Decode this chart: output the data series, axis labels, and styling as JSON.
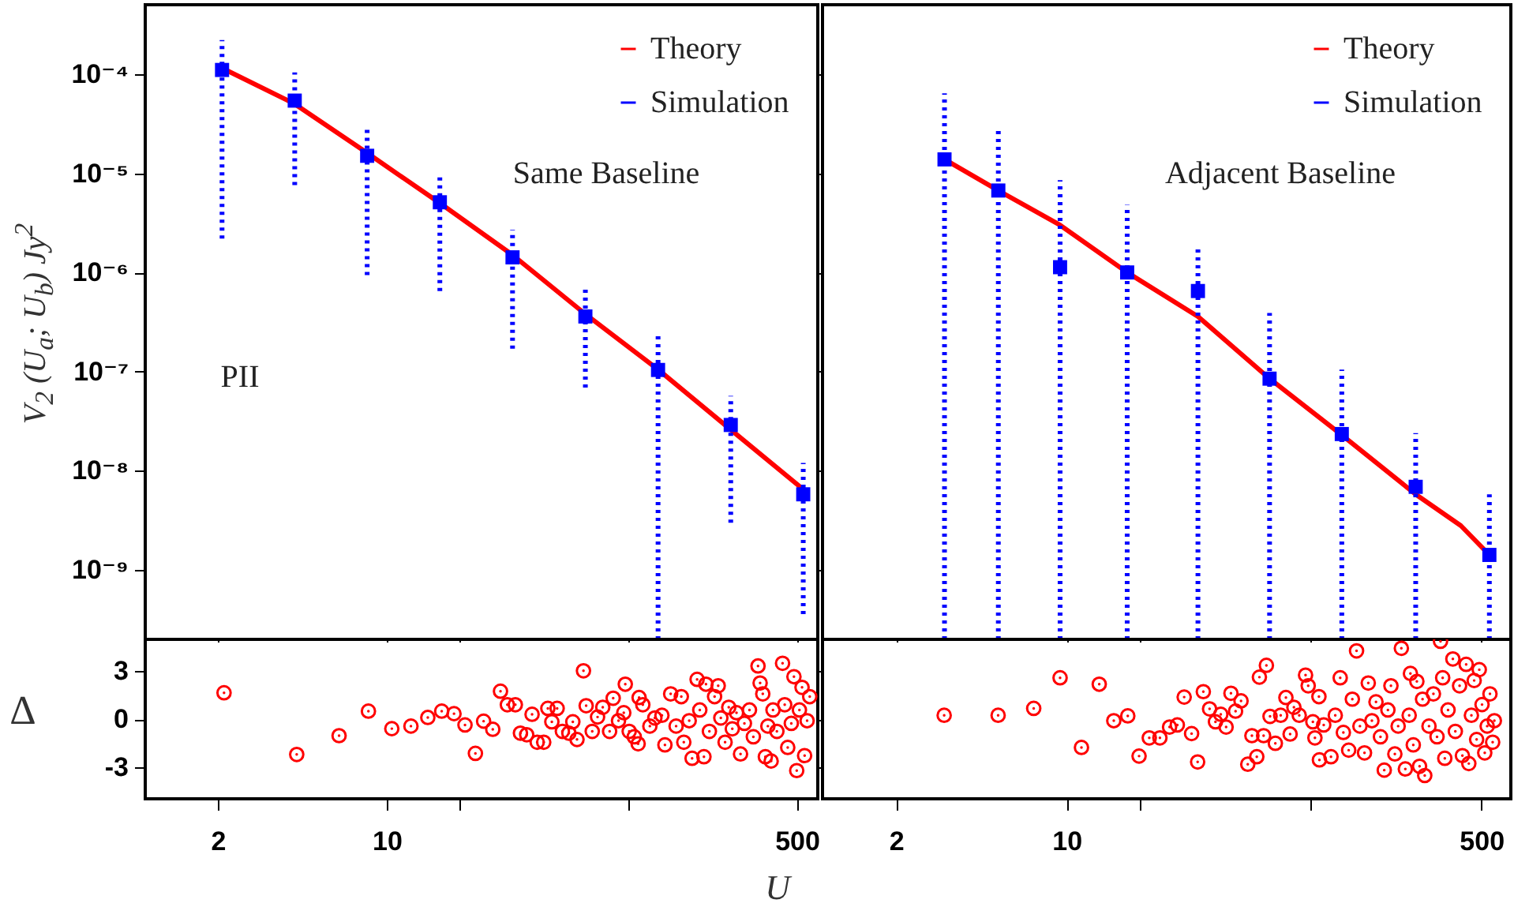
{
  "chart_data": [
    {
      "type": "line",
      "ylabel": "V$_{2}$ (U$_{a}$; U$_{b}$) Jy$^{2}$",
      "annotations": [
        "Same Baseline",
        "PII"
      ],
      "log": "xy",
      "legend": "top right",
      "tick_labels": "y",
      "xlim": [
        1,
        610
      ],
      "xticks": [
        {
          "value": 2,
          "label": null
        },
        {
          "value": 10,
          "label": null
        },
        {
          "value": 20,
          "label": null
        },
        {
          "value": 100,
          "label": null
        },
        {
          "value": 500,
          "label": null
        }
      ],
      "ylim": [
        2e-10,
        0.0005
      ],
      "yticks": [
        {
          "value": 1e-09,
          "label": "10⁻⁹"
        },
        {
          "value": 1e-08,
          "label": "10⁻⁸"
        },
        {
          "value": 1e-07,
          "label": "10⁻⁷"
        },
        {
          "value": 1e-06,
          "label": "10⁻⁶"
        },
        {
          "value": 1e-05,
          "label": "10⁻⁵"
        },
        {
          "value": 0.0001,
          "label": "10⁻⁴"
        }
      ],
      "x": [
        2.08,
        4.16,
        8.3,
        16.6,
        33.2,
        66.5,
        133,
        266,
        531
      ],
      "series": [
        {
          "name": "Theory",
          "type": "line",
          "marker": "none",
          "color": "#ff0000",
          "values": [
            0.000115,
            5e-05,
            1.6e-05,
            5e-06,
            1.5e-06,
            3.8e-07,
            1.05e-07,
            2.6e-08,
            6.5e-09
          ]
        },
        {
          "name": "Simulation",
          "type": "scatter",
          "marker": "square",
          "color": "#0000ff",
          "values": [
            0.00011,
            5.4e-05,
            1.5e-05,
            5.1e-06,
            1.42e-06,
            3.6e-07,
            1.04e-07,
            2.9e-08,
            5.8e-09
          ],
          "errors": [
            [
              2.2e-06,
              0.00022
            ],
            [
              7.6e-06,
              0.000104
            ],
            [
              9.4e-07,
              3e-05
            ],
            [
              6.5e-07,
              9.7e-06
            ],
            [
              1.7e-07,
              2.7e-06
            ],
            [
              6.9e-08,
              6.8e-07
            ],
            [
              2e-10,
              2.3e-07
            ],
            [
              3e-09,
              5.7e-08
            ],
            [
              3.6e-10,
              1.2e-08
            ]
          ]
        }
      ]
    },
    {
      "type": "line",
      "annotations": [
        "Adjacent Baseline"
      ],
      "log": "xy",
      "legend": "top right",
      "tick_labels": false,
      "xlim": [
        1,
        660
      ],
      "xticks": [
        {
          "value": 2,
          "label": null
        },
        {
          "value": 10,
          "label": null
        },
        {
          "value": 20,
          "label": null
        },
        {
          "value": 100,
          "label": null
        },
        {
          "value": 500,
          "label": null
        }
      ],
      "ylim": [
        2e-10,
        0.0005
      ],
      "yticks": [
        {
          "value": 1e-09,
          "label": null
        },
        {
          "value": 1e-08,
          "label": null
        },
        {
          "value": 1e-07,
          "label": null
        },
        {
          "value": 1e-06,
          "label": null
        },
        {
          "value": 1e-05,
          "label": null
        },
        {
          "value": 0.0001,
          "label": null
        }
      ],
      "x": [
        3.16,
        5.25,
        9.4,
        17.7,
        34.5,
        67.8,
        134,
        269,
        539
      ],
      "series": [
        {
          "name": "Theory",
          "type": "line",
          "marker": "none",
          "color": "#ff0000",
          "x": [
            3.16,
            5.25,
            9.4,
            17.7,
            34.5,
            67.8,
            134,
            269,
            412,
            539
          ],
          "values": [
            1.38e-05,
            6.7e-06,
            3e-06,
            1e-06,
            3.6e-07,
            8.5e-08,
            2.3e-08,
            5.8e-09,
            2.8e-09,
            1.42e-09
          ]
        },
        {
          "name": "Simulation",
          "type": "scatter",
          "marker": "square",
          "color": "#0000ff",
          "values": [
            1.38e-05,
            6.7e-06,
            1.13e-06,
            1e-06,
            6.5e-07,
            8.5e-08,
            2.35e-08,
            6.9e-09,
            1.42e-09
          ],
          "errors": [
            [
              2e-10,
              6.4e-05
            ],
            [
              2e-10,
              2.9e-05
            ],
            [
              2e-10,
              8.5e-06
            ],
            [
              2e-10,
              4.8e-06
            ],
            [
              2e-10,
              1.9e-06
            ],
            [
              2e-10,
              3.9e-07
            ],
            [
              2e-10,
              1.05e-07
            ],
            [
              2e-10,
              2.4e-08
            ],
            [
              2e-10,
              5.8e-09
            ]
          ]
        }
      ]
    },
    {
      "type": "scatter",
      "xlabel": "U",
      "ylabel": "Δ",
      "log": "x",
      "marker": "circle",
      "xlim": [
        1,
        610
      ],
      "xticks": [
        2,
        10,
        {
          "value": 20,
          "label": null
        },
        {
          "value": 100,
          "label": null
        },
        500
      ],
      "ylim": [
        -5,
        5
      ],
      "yticks": [
        -3,
        0,
        3
      ],
      "x": [
        2.12,
        4.24,
        6.35,
        8.4,
        10.5,
        12.6,
        14.8,
        16.9,
        19,
        21.1,
        23.3,
        25.2,
        27.5,
        29.6,
        31.6,
        34.1,
        35.8,
        38,
        40,
        42,
        44.7,
        46.5,
        48.3,
        50.8,
        53.4,
        56.8,
        59,
        61.4,
        65.3,
        67,
        71,
        74.7,
        78.5,
        83.8,
        86.7,
        91.2,
        95.9,
        97.3,
        101,
        106,
        110,
        111,
        115,
        123,
        129,
        138,
        142,
        150,
        158,
        166,
        170,
        179,
        184,
        193,
        198,
        206,
        210,
        217,
        228,
        236,
        242,
        252,
        261,
        270,
        281,
        292,
        303,
        318,
        330,
        345,
        352,
        361,
        370,
        379,
        391,
        398,
        413,
        436,
        445,
        458,
        474,
        486,
        499,
        512,
        525,
        538,
        551,
        565
      ],
      "series": [
        {
          "color": "#ff0000",
          "values": [
            1.65,
            -2.22,
            -1.04,
            0.5,
            -0.6,
            -0.44,
            0.1,
            0.5,
            0.34,
            -0.37,
            -2.15,
            -0.13,
            -0.64,
            1.75,
            0.9,
            0.9,
            -0.88,
            -0.98,
            0.3,
            -1.45,
            -1.45,
            0.67,
            -0.17,
            0.67,
            -0.77,
            -0.88,
            -0.17,
            -1.28,
            3.03,
            0.84,
            -0.77,
            0.13,
            0.74,
            -0.77,
            1.31,
            -0.1,
            0.4,
            2.19,
            -0.77,
            -1.11,
            -1.55,
            1.35,
            0.9,
            -0.44,
            0.07,
            0.24,
            -1.62,
            1.58,
            -0.44,
            1.41,
            -1.45,
            -0.1,
            -2.46,
            2.49,
            0.57,
            -2.36,
            2.19,
            -0.77,
            1.41,
            2.09,
            0.07,
            -1.45,
            0.74,
            -0.61,
            0.4,
            -2.19,
            -0.27,
            0.57,
            -1.11,
            3.33,
            2.26,
            1.58,
            -2.36,
            -0.44,
            -2.63,
            0.57,
            -0.77,
            3.5,
            0.9,
            -1.78,
            -0.27,
            2.66,
            -3.23,
            0.57,
            1.99,
            -2.29,
            -0.1,
            1.41
          ]
        }
      ]
    },
    {
      "type": "scatter",
      "log": "x",
      "marker": "circle",
      "tick_labels": "x",
      "xlim": [
        1,
        660
      ],
      "xticks": [
        2,
        10,
        {
          "value": 20,
          "label": null
        },
        {
          "value": 100,
          "label": null
        },
        500
      ],
      "ylim": [
        -5,
        5
      ],
      "yticks": [
        {
          "value": -3,
          "label": null
        },
        {
          "value": 0,
          "label": null
        },
        {
          "value": 3,
          "label": null
        }
      ],
      "x": [
        3.15,
        5.24,
        7.33,
        9.4,
        11.5,
        13.6,
        15.6,
        17.8,
        19.8,
        21.8,
        24.1,
        26.4,
        28.4,
        30.3,
        32.5,
        34.4,
        36.3,
        38.5,
        40.7,
        42.8,
        45,
        47.1,
        49.2,
        51.8,
        55.2,
        57.4,
        60.1,
        61.6,
        64.1,
        65.8,
        68.1,
        71.6,
        75.3,
        79.1,
        82.3,
        85.3,
        89.7,
        95.2,
        97.6,
        102,
        104,
        108,
        108.5,
        113,
        121,
        126,
        132,
        136,
        143,
        148,
        154,
        159,
        166,
        172,
        178,
        185,
        193,
        200,
        207,
        213,
        221,
        228,
        235,
        244,
        253,
        256,
        263,
        272,
        279,
        287,
        293,
        305,
        318,
        329,
        340,
        347,
        354,
        365,
        382,
        391,
        407,
        418,
        433,
        444,
        455,
        467,
        478,
        490,
        503,
        516,
        528,
        542,
        556,
        565
      ],
      "series": [
        {
          "color": "#ff0000",
          "values": [
            0.24,
            0.24,
            0.67,
            2.59,
            -1.78,
            2.19,
            -0.1,
            0.2,
            -2.32,
            -1.18,
            -1.18,
            -0.5,
            -0.37,
            1.38,
            -0.91,
            -2.69,
            1.72,
            0.64,
            -0.17,
            0.3,
            -0.5,
            1.62,
            0.5,
            1.14,
            -2.83,
            -1.04,
            -2.36,
            2.63,
            -1.04,
            3.37,
            0.17,
            -1.52,
            0.24,
            1.35,
            -0.94,
            0.74,
            0.24,
            2.76,
            2.09,
            -0.17,
            -1.18,
            1.41,
            -2.56,
            -0.37,
            -2.36,
            0.24,
            2.59,
            -0.84,
            -1.95,
            1.25,
            4.28,
            -0.44,
            -2.12,
            2.26,
            -0.1,
            1.08,
            -1.11,
            -3.2,
            0.57,
            2.09,
            -2.19,
            -0.44,
            4.44,
            -3.13,
            0.24,
            2.86,
            -1.62,
            2.36,
            -2.96,
            1.25,
            -3.54,
            -0.44,
            1.58,
            -1.11,
            4.88,
            2.59,
            -2.46,
            0.57,
            3.77,
            -0.77,
            2.09,
            -2.29,
            3.43,
            -2.79,
            0.24,
            2.42,
            -1.28,
            3.1,
            0.91,
            -2.12,
            -0.44,
            1.58,
            -1.45,
            -0.1
          ]
        }
      ]
    }
  ]
}
